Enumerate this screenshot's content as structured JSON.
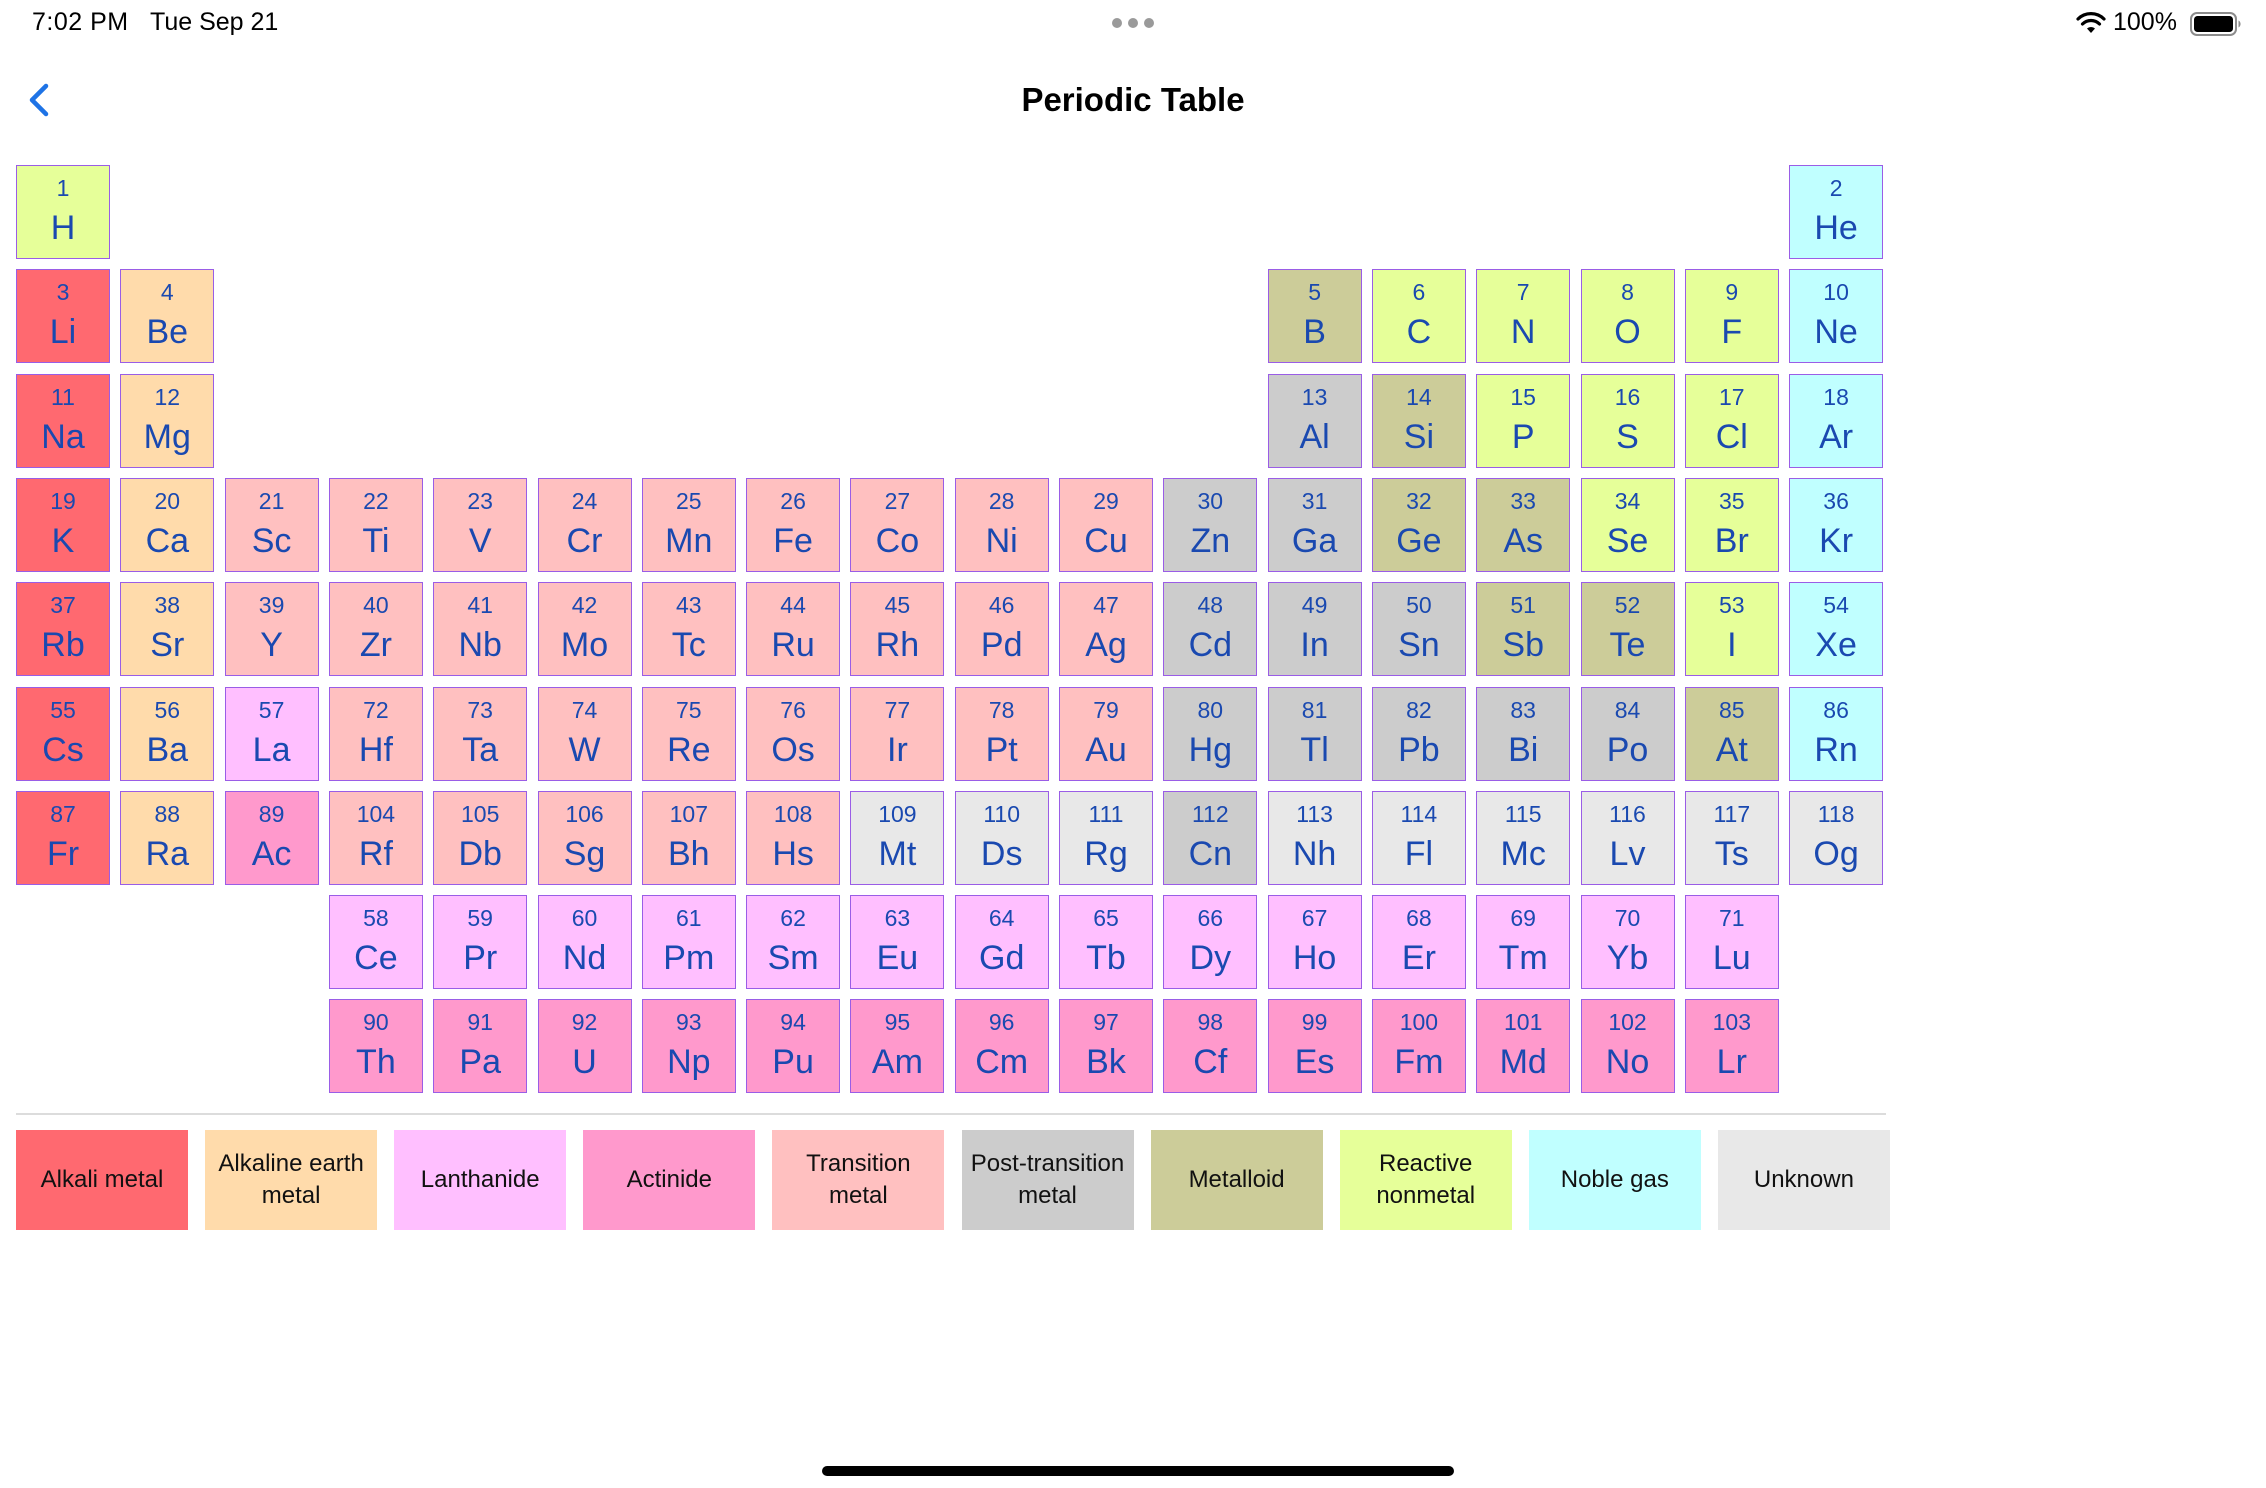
{
  "status": {
    "time": "7:02 PM",
    "date": "Tue Sep 21",
    "battery": "100%"
  },
  "nav": {
    "title": "Periodic Table"
  },
  "colors": {
    "alkali": "#ff6970",
    "alkaline": "#ffdbab",
    "lanthanide": "#ffbfff",
    "actinide": "#ff99cc",
    "transition": "#ffc0c0",
    "post": "#cccccc",
    "metalloid": "#cccc99",
    "nonmetal": "#e6ff99",
    "noble": "#c0ffff",
    "unknown": "#e8e8e8",
    "text": "#1a49b0",
    "border": "#9a5de6"
  },
  "elements": [
    {
      "n": "1",
      "s": "H",
      "c": "nonmetal",
      "col": 1,
      "row": 1
    },
    {
      "n": "2",
      "s": "He",
      "c": "noble",
      "col": 18,
      "row": 1
    },
    {
      "n": "3",
      "s": "Li",
      "c": "alkali",
      "col": 1,
      "row": 2
    },
    {
      "n": "4",
      "s": "Be",
      "c": "alkaline",
      "col": 2,
      "row": 2
    },
    {
      "n": "5",
      "s": "B",
      "c": "metalloid",
      "col": 13,
      "row": 2
    },
    {
      "n": "6",
      "s": "C",
      "c": "nonmetal",
      "col": 14,
      "row": 2
    },
    {
      "n": "7",
      "s": "N",
      "c": "nonmetal",
      "col": 15,
      "row": 2
    },
    {
      "n": "8",
      "s": "O",
      "c": "nonmetal",
      "col": 16,
      "row": 2
    },
    {
      "n": "9",
      "s": "F",
      "c": "nonmetal",
      "col": 17,
      "row": 2
    },
    {
      "n": "10",
      "s": "Ne",
      "c": "noble",
      "col": 18,
      "row": 2
    },
    {
      "n": "11",
      "s": "Na",
      "c": "alkali",
      "col": 1,
      "row": 3
    },
    {
      "n": "12",
      "s": "Mg",
      "c": "alkaline",
      "col": 2,
      "row": 3
    },
    {
      "n": "13",
      "s": "Al",
      "c": "post",
      "col": 13,
      "row": 3
    },
    {
      "n": "14",
      "s": "Si",
      "c": "metalloid",
      "col": 14,
      "row": 3
    },
    {
      "n": "15",
      "s": "P",
      "c": "nonmetal",
      "col": 15,
      "row": 3
    },
    {
      "n": "16",
      "s": "S",
      "c": "nonmetal",
      "col": 16,
      "row": 3
    },
    {
      "n": "17",
      "s": "Cl",
      "c": "nonmetal",
      "col": 17,
      "row": 3
    },
    {
      "n": "18",
      "s": "Ar",
      "c": "noble",
      "col": 18,
      "row": 3
    },
    {
      "n": "19",
      "s": "K",
      "c": "alkali",
      "col": 1,
      "row": 4
    },
    {
      "n": "20",
      "s": "Ca",
      "c": "alkaline",
      "col": 2,
      "row": 4
    },
    {
      "n": "21",
      "s": "Sc",
      "c": "transition",
      "col": 3,
      "row": 4
    },
    {
      "n": "22",
      "s": "Ti",
      "c": "transition",
      "col": 4,
      "row": 4
    },
    {
      "n": "23",
      "s": "V",
      "c": "transition",
      "col": 5,
      "row": 4
    },
    {
      "n": "24",
      "s": "Cr",
      "c": "transition",
      "col": 6,
      "row": 4
    },
    {
      "n": "25",
      "s": "Mn",
      "c": "transition",
      "col": 7,
      "row": 4
    },
    {
      "n": "26",
      "s": "Fe",
      "c": "transition",
      "col": 8,
      "row": 4
    },
    {
      "n": "27",
      "s": "Co",
      "c": "transition",
      "col": 9,
      "row": 4
    },
    {
      "n": "28",
      "s": "Ni",
      "c": "transition",
      "col": 10,
      "row": 4
    },
    {
      "n": "29",
      "s": "Cu",
      "c": "transition",
      "col": 11,
      "row": 4
    },
    {
      "n": "30",
      "s": "Zn",
      "c": "post",
      "col": 12,
      "row": 4
    },
    {
      "n": "31",
      "s": "Ga",
      "c": "post",
      "col": 13,
      "row": 4
    },
    {
      "n": "32",
      "s": "Ge",
      "c": "metalloid",
      "col": 14,
      "row": 4
    },
    {
      "n": "33",
      "s": "As",
      "c": "metalloid",
      "col": 15,
      "row": 4
    },
    {
      "n": "34",
      "s": "Se",
      "c": "nonmetal",
      "col": 16,
      "row": 4
    },
    {
      "n": "35",
      "s": "Br",
      "c": "nonmetal",
      "col": 17,
      "row": 4
    },
    {
      "n": "36",
      "s": "Kr",
      "c": "noble",
      "col": 18,
      "row": 4
    },
    {
      "n": "37",
      "s": "Rb",
      "c": "alkali",
      "col": 1,
      "row": 5
    },
    {
      "n": "38",
      "s": "Sr",
      "c": "alkaline",
      "col": 2,
      "row": 5
    },
    {
      "n": "39",
      "s": "Y",
      "c": "transition",
      "col": 3,
      "row": 5
    },
    {
      "n": "40",
      "s": "Zr",
      "c": "transition",
      "col": 4,
      "row": 5
    },
    {
      "n": "41",
      "s": "Nb",
      "c": "transition",
      "col": 5,
      "row": 5
    },
    {
      "n": "42",
      "s": "Mo",
      "c": "transition",
      "col": 6,
      "row": 5
    },
    {
      "n": "43",
      "s": "Tc",
      "c": "transition",
      "col": 7,
      "row": 5
    },
    {
      "n": "44",
      "s": "Ru",
      "c": "transition",
      "col": 8,
      "row": 5
    },
    {
      "n": "45",
      "s": "Rh",
      "c": "transition",
      "col": 9,
      "row": 5
    },
    {
      "n": "46",
      "s": "Pd",
      "c": "transition",
      "col": 10,
      "row": 5
    },
    {
      "n": "47",
      "s": "Ag",
      "c": "transition",
      "col": 11,
      "row": 5
    },
    {
      "n": "48",
      "s": "Cd",
      "c": "post",
      "col": 12,
      "row": 5
    },
    {
      "n": "49",
      "s": "In",
      "c": "post",
      "col": 13,
      "row": 5
    },
    {
      "n": "50",
      "s": "Sn",
      "c": "post",
      "col": 14,
      "row": 5
    },
    {
      "n": "51",
      "s": "Sb",
      "c": "metalloid",
      "col": 15,
      "row": 5
    },
    {
      "n": "52",
      "s": "Te",
      "c": "metalloid",
      "col": 16,
      "row": 5
    },
    {
      "n": "53",
      "s": "I",
      "c": "nonmetal",
      "col": 17,
      "row": 5
    },
    {
      "n": "54",
      "s": "Xe",
      "c": "noble",
      "col": 18,
      "row": 5
    },
    {
      "n": "55",
      "s": "Cs",
      "c": "alkali",
      "col": 1,
      "row": 6
    },
    {
      "n": "56",
      "s": "Ba",
      "c": "alkaline",
      "col": 2,
      "row": 6
    },
    {
      "n": "57",
      "s": "La",
      "c": "lanthanide",
      "col": 3,
      "row": 6
    },
    {
      "n": "72",
      "s": "Hf",
      "c": "transition",
      "col": 4,
      "row": 6
    },
    {
      "n": "73",
      "s": "Ta",
      "c": "transition",
      "col": 5,
      "row": 6
    },
    {
      "n": "74",
      "s": "W",
      "c": "transition",
      "col": 6,
      "row": 6
    },
    {
      "n": "75",
      "s": "Re",
      "c": "transition",
      "col": 7,
      "row": 6
    },
    {
      "n": "76",
      "s": "Os",
      "c": "transition",
      "col": 8,
      "row": 6
    },
    {
      "n": "77",
      "s": "Ir",
      "c": "transition",
      "col": 9,
      "row": 6
    },
    {
      "n": "78",
      "s": "Pt",
      "c": "transition",
      "col": 10,
      "row": 6
    },
    {
      "n": "79",
      "s": "Au",
      "c": "transition",
      "col": 11,
      "row": 6
    },
    {
      "n": "80",
      "s": "Hg",
      "c": "post",
      "col": 12,
      "row": 6
    },
    {
      "n": "81",
      "s": "Tl",
      "c": "post",
      "col": 13,
      "row": 6
    },
    {
      "n": "82",
      "s": "Pb",
      "c": "post",
      "col": 14,
      "row": 6
    },
    {
      "n": "83",
      "s": "Bi",
      "c": "post",
      "col": 15,
      "row": 6
    },
    {
      "n": "84",
      "s": "Po",
      "c": "post",
      "col": 16,
      "row": 6
    },
    {
      "n": "85",
      "s": "At",
      "c": "metalloid",
      "col": 17,
      "row": 6
    },
    {
      "n": "86",
      "s": "Rn",
      "c": "noble",
      "col": 18,
      "row": 6
    },
    {
      "n": "87",
      "s": "Fr",
      "c": "alkali",
      "col": 1,
      "row": 7
    },
    {
      "n": "88",
      "s": "Ra",
      "c": "alkaline",
      "col": 2,
      "row": 7
    },
    {
      "n": "89",
      "s": "Ac",
      "c": "actinide",
      "col": 3,
      "row": 7
    },
    {
      "n": "104",
      "s": "Rf",
      "c": "transition",
      "col": 4,
      "row": 7
    },
    {
      "n": "105",
      "s": "Db",
      "c": "transition",
      "col": 5,
      "row": 7
    },
    {
      "n": "106",
      "s": "Sg",
      "c": "transition",
      "col": 6,
      "row": 7
    },
    {
      "n": "107",
      "s": "Bh",
      "c": "transition",
      "col": 7,
      "row": 7
    },
    {
      "n": "108",
      "s": "Hs",
      "c": "transition",
      "col": 8,
      "row": 7
    },
    {
      "n": "109",
      "s": "Mt",
      "c": "unknown",
      "col": 9,
      "row": 7
    },
    {
      "n": "110",
      "s": "Ds",
      "c": "unknown",
      "col": 10,
      "row": 7
    },
    {
      "n": "111",
      "s": "Rg",
      "c": "unknown",
      "col": 11,
      "row": 7
    },
    {
      "n": "112",
      "s": "Cn",
      "c": "post",
      "col": 12,
      "row": 7
    },
    {
      "n": "113",
      "s": "Nh",
      "c": "unknown",
      "col": 13,
      "row": 7
    },
    {
      "n": "114",
      "s": "Fl",
      "c": "unknown",
      "col": 14,
      "row": 7
    },
    {
      "n": "115",
      "s": "Mc",
      "c": "unknown",
      "col": 15,
      "row": 7
    },
    {
      "n": "116",
      "s": "Lv",
      "c": "unknown",
      "col": 16,
      "row": 7
    },
    {
      "n": "117",
      "s": "Ts",
      "c": "unknown",
      "col": 17,
      "row": 7
    },
    {
      "n": "118",
      "s": "Og",
      "c": "unknown",
      "col": 18,
      "row": 7
    },
    {
      "n": "58",
      "s": "Ce",
      "c": "lanthanide",
      "col": 4,
      "row": 8
    },
    {
      "n": "59",
      "s": "Pr",
      "c": "lanthanide",
      "col": 5,
      "row": 8
    },
    {
      "n": "60",
      "s": "Nd",
      "c": "lanthanide",
      "col": 6,
      "row": 8
    },
    {
      "n": "61",
      "s": "Pm",
      "c": "lanthanide",
      "col": 7,
      "row": 8
    },
    {
      "n": "62",
      "s": "Sm",
      "c": "lanthanide",
      "col": 8,
      "row": 8
    },
    {
      "n": "63",
      "s": "Eu",
      "c": "lanthanide",
      "col": 9,
      "row": 8
    },
    {
      "n": "64",
      "s": "Gd",
      "c": "lanthanide",
      "col": 10,
      "row": 8
    },
    {
      "n": "65",
      "s": "Tb",
      "c": "lanthanide",
      "col": 11,
      "row": 8
    },
    {
      "n": "66",
      "s": "Dy",
      "c": "lanthanide",
      "col": 12,
      "row": 8
    },
    {
      "n": "67",
      "s": "Ho",
      "c": "lanthanide",
      "col": 13,
      "row": 8
    },
    {
      "n": "68",
      "s": "Er",
      "c": "lanthanide",
      "col": 14,
      "row": 8
    },
    {
      "n": "69",
      "s": "Tm",
      "c": "lanthanide",
      "col": 15,
      "row": 8
    },
    {
      "n": "70",
      "s": "Yb",
      "c": "lanthanide",
      "col": 16,
      "row": 8
    },
    {
      "n": "71",
      "s": "Lu",
      "c": "lanthanide",
      "col": 17,
      "row": 8
    },
    {
      "n": "90",
      "s": "Th",
      "c": "actinide",
      "col": 4,
      "row": 9
    },
    {
      "n": "91",
      "s": "Pa",
      "c": "actinide",
      "col": 5,
      "row": 9
    },
    {
      "n": "92",
      "s": "U",
      "c": "actinide",
      "col": 6,
      "row": 9
    },
    {
      "n": "93",
      "s": "Np",
      "c": "actinide",
      "col": 7,
      "row": 9
    },
    {
      "n": "94",
      "s": "Pu",
      "c": "actinide",
      "col": 8,
      "row": 9
    },
    {
      "n": "95",
      "s": "Am",
      "c": "actinide",
      "col": 9,
      "row": 9
    },
    {
      "n": "96",
      "s": "Cm",
      "c": "actinide",
      "col": 10,
      "row": 9
    },
    {
      "n": "97",
      "s": "Bk",
      "c": "actinide",
      "col": 11,
      "row": 9
    },
    {
      "n": "98",
      "s": "Cf",
      "c": "actinide",
      "col": 12,
      "row": 9
    },
    {
      "n": "99",
      "s": "Es",
      "c": "actinide",
      "col": 13,
      "row": 9
    },
    {
      "n": "100",
      "s": "Fm",
      "c": "actinide",
      "col": 14,
      "row": 9
    },
    {
      "n": "101",
      "s": "Md",
      "c": "actinide",
      "col": 15,
      "row": 9
    },
    {
      "n": "102",
      "s": "No",
      "c": "actinide",
      "col": 16,
      "row": 9
    },
    {
      "n": "103",
      "s": "Lr",
      "c": "actinide",
      "col": 17,
      "row": 9
    }
  ],
  "legend": [
    {
      "label": "Alkali metal",
      "c": "alkali"
    },
    {
      "label": "Alkaline earth metal",
      "c": "alkaline"
    },
    {
      "label": "Lanthanide",
      "c": "lanthanide"
    },
    {
      "label": "Actinide",
      "c": "actinide"
    },
    {
      "label": "Transition metal",
      "c": "transition"
    },
    {
      "label": "Post-transition metal",
      "c": "post"
    },
    {
      "label": "Metalloid",
      "c": "metalloid"
    },
    {
      "label": "Reactive nonmetal",
      "c": "nonmetal"
    },
    {
      "label": "Noble gas",
      "c": "noble"
    },
    {
      "label": "Unknown",
      "c": "unknown"
    }
  ]
}
